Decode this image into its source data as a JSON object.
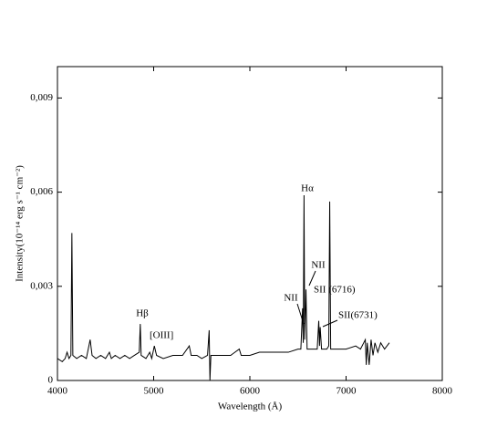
{
  "chart_data": {
    "type": "line",
    "xlabel": "Wavelength (Å)",
    "ylabel": "Intensity(10⁻¹⁴ erg s⁻¹ cm⁻²)",
    "xlim": [
      4000,
      8000
    ],
    "xticks": [
      4000,
      5000,
      6000,
      7000,
      8000
    ],
    "ylim": [
      0,
      0.01
    ],
    "yticks": [
      0,
      {
        "value": 0.003,
        "label": "0,003"
      },
      {
        "value": 0.006,
        "label": "0,006"
      },
      {
        "value": 0.009,
        "label": "0,009"
      }
    ],
    "annotations": [
      "Hα",
      "NII",
      "NII",
      "SII (6716)",
      "SII(6731)",
      "Hβ",
      "[OIII]"
    ],
    "series": [
      {
        "color": "#000000",
        "x": [
          4000,
          4050,
          4080,
          4100,
          4120,
          4140,
          4150,
          4160,
          4200,
          4250,
          4300,
          4340,
          4360,
          4400,
          4450,
          4500,
          4540,
          4560,
          4600,
          4650,
          4700,
          4750,
          4800,
          4850,
          4861,
          4870,
          4920,
          4959,
          4980,
          5007,
          5030,
          5100,
          5200,
          5300,
          5370,
          5390,
          5450,
          5500,
          5560,
          5577,
          5585,
          5595,
          5650,
          5700,
          5800,
          5890,
          5910,
          6000,
          6100,
          6200,
          6300,
          6400,
          6500,
          6530,
          6548,
          6555,
          6563,
          6570,
          6583,
          6595,
          6650,
          6700,
          6716,
          6724,
          6731,
          6745,
          6800,
          6820,
          6830,
          6840,
          6900,
          7000,
          7100,
          7150,
          7200,
          7210,
          7220,
          7240,
          7260,
          7280,
          7300,
          7330,
          7360,
          7400,
          7450
        ],
        "values": [
          0.0007,
          0.0006,
          0.0007,
          0.0009,
          0.0007,
          0.0008,
          0.0047,
          0.0008,
          0.0007,
          0.0008,
          0.0007,
          0.0013,
          0.0008,
          0.0007,
          0.0008,
          0.0007,
          0.0009,
          0.0007,
          0.0008,
          0.0007,
          0.0008,
          0.0007,
          0.0008,
          0.0009,
          0.0018,
          0.0008,
          0.0007,
          0.0009,
          0.0007,
          0.0011,
          0.0008,
          0.0007,
          0.0008,
          0.0008,
          0.0011,
          0.0008,
          0.0008,
          0.0007,
          0.0008,
          0.0016,
          0,
          0.0008,
          0.0008,
          0.0008,
          0.0008,
          0.001,
          0.0008,
          0.0008,
          0.0009,
          0.0009,
          0.0009,
          0.0009,
          0.001,
          0.001,
          0.0023,
          0.0012,
          0.0059,
          0.0013,
          0.0029,
          0.001,
          0.001,
          0.001,
          0.0019,
          0.0011,
          0.0017,
          0.001,
          0.001,
          0.0011,
          0.0057,
          0.001,
          0.001,
          0.001,
          0.0011,
          0.001,
          0.0013,
          0.0005,
          0.0012,
          0.0005,
          0.0013,
          0.0008,
          0.0012,
          0.0009,
          0.0012,
          0.001,
          0.0012
        ]
      }
    ]
  }
}
